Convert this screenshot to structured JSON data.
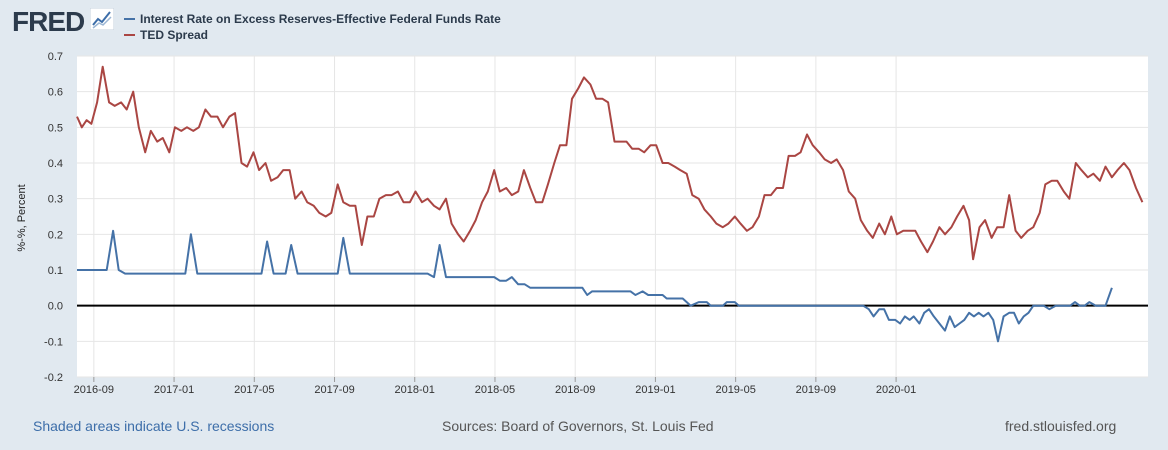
{
  "header": {
    "logo": "FRED",
    "logo_icon": "chart-line-icon"
  },
  "legend": [
    {
      "label": "Interest Rate on Excess Reserves-Effective Federal Funds Rate",
      "color": "#4572a7"
    },
    {
      "label": "TED Spread",
      "color": "#aa4643"
    }
  ],
  "footer": {
    "note": "Shaded areas indicate U.S. recessions",
    "sources": "Sources: Board of Governors, St. Louis Fed",
    "site": "fred.stlouisfed.org"
  },
  "chart_data": {
    "type": "line",
    "title": "",
    "xlabel": "",
    "ylabel": "%-%, Percent",
    "ylim": [
      -0.2,
      0.7
    ],
    "yticks": [
      "0.7",
      "0.6",
      "0.5",
      "0.4",
      "0.3",
      "0.2",
      "0.1",
      "0.0",
      "-0.1",
      "-0.2"
    ],
    "xlim": [
      0,
      13.35
    ],
    "xticks": [
      {
        "label": "2016-09",
        "x": 0.21
      },
      {
        "label": "2017-01",
        "x": 1.21
      },
      {
        "label": "2017-05",
        "x": 2.21
      },
      {
        "label": "2017-09",
        "x": 3.21
      },
      {
        "label": "2018-01",
        "x": 4.21
      },
      {
        "label": "2018-05",
        "x": 5.21
      },
      {
        "label": "2018-09",
        "x": 6.21
      },
      {
        "label": "2019-01",
        "x": 7.21
      },
      {
        "label": "2019-05",
        "x": 8.21
      },
      {
        "label": "2019-09",
        "x": 9.21
      },
      {
        "label": "2020-01",
        "x": 10.21
      }
    ],
    "zero_line": 0,
    "series": [
      {
        "name": "Interest Rate on Excess Reserves-Effective Federal Funds Rate",
        "color": "#4572a7",
        "points": [
          [
            0.0,
            0.1
          ],
          [
            0.37,
            0.1
          ],
          [
            0.45,
            0.21
          ],
          [
            0.52,
            0.1
          ],
          [
            0.6,
            0.09
          ],
          [
            1.35,
            0.09
          ],
          [
            1.42,
            0.2
          ],
          [
            1.5,
            0.09
          ],
          [
            2.3,
            0.09
          ],
          [
            2.37,
            0.18
          ],
          [
            2.45,
            0.09
          ],
          [
            2.6,
            0.09
          ],
          [
            2.67,
            0.17
          ],
          [
            2.75,
            0.09
          ],
          [
            3.25,
            0.09
          ],
          [
            3.32,
            0.19
          ],
          [
            3.4,
            0.09
          ],
          [
            4.2,
            0.09
          ],
          [
            4.37,
            0.09
          ],
          [
            4.45,
            0.08
          ],
          [
            4.52,
            0.17
          ],
          [
            4.6,
            0.08
          ],
          [
            5.2,
            0.08
          ],
          [
            5.27,
            0.07
          ],
          [
            5.35,
            0.07
          ],
          [
            5.42,
            0.08
          ],
          [
            5.5,
            0.06
          ],
          [
            5.58,
            0.06
          ],
          [
            5.65,
            0.05
          ],
          [
            6.3,
            0.05
          ],
          [
            6.36,
            0.03
          ],
          [
            6.42,
            0.04
          ],
          [
            6.9,
            0.04
          ],
          [
            6.96,
            0.03
          ],
          [
            7.05,
            0.04
          ],
          [
            7.12,
            0.03
          ],
          [
            7.3,
            0.03
          ],
          [
            7.35,
            0.02
          ],
          [
            7.55,
            0.02
          ],
          [
            7.65,
            0.0
          ],
          [
            7.75,
            0.01
          ],
          [
            7.85,
            0.01
          ],
          [
            7.9,
            0.0
          ],
          [
            8.05,
            0.0
          ],
          [
            8.1,
            0.01
          ],
          [
            8.2,
            0.01
          ],
          [
            8.25,
            0.0
          ],
          [
            9.8,
            0.0
          ],
          [
            9.87,
            -0.01
          ],
          [
            9.93,
            -0.03
          ],
          [
            10.0,
            -0.01
          ],
          [
            10.06,
            -0.01
          ],
          [
            10.12,
            -0.04
          ],
          [
            10.2,
            -0.04
          ],
          [
            10.26,
            -0.05
          ],
          [
            10.32,
            -0.03
          ],
          [
            10.38,
            -0.04
          ],
          [
            10.43,
            -0.03
          ],
          [
            10.5,
            -0.05
          ],
          [
            10.56,
            -0.02
          ],
          [
            10.62,
            -0.01
          ],
          [
            10.68,
            -0.03
          ],
          [
            10.75,
            -0.05
          ],
          [
            10.82,
            -0.07
          ],
          [
            10.88,
            -0.03
          ],
          [
            10.94,
            -0.06
          ],
          [
            11.0,
            -0.05
          ],
          [
            11.06,
            -0.04
          ],
          [
            11.12,
            -0.02
          ],
          [
            11.18,
            -0.03
          ],
          [
            11.24,
            -0.02
          ],
          [
            11.3,
            -0.03
          ],
          [
            11.36,
            -0.02
          ],
          [
            11.42,
            -0.04
          ],
          [
            11.48,
            -0.1
          ],
          [
            11.55,
            -0.03
          ],
          [
            11.62,
            -0.02
          ],
          [
            11.68,
            -0.02
          ],
          [
            11.74,
            -0.05
          ],
          [
            11.8,
            -0.03
          ],
          [
            11.86,
            -0.02
          ],
          [
            11.92,
            0.0
          ],
          [
            11.98,
            0.0
          ],
          [
            12.05,
            0.0
          ],
          [
            12.12,
            -0.01
          ],
          [
            12.2,
            0.0
          ],
          [
            12.3,
            0.0
          ],
          [
            12.38,
            0.0
          ],
          [
            12.44,
            0.01
          ],
          [
            12.5,
            0.0
          ],
          [
            12.56,
            0.0
          ],
          [
            12.62,
            0.01
          ],
          [
            12.7,
            0.0
          ],
          [
            12.82,
            0.0
          ],
          [
            12.9,
            0.05
          ]
        ]
      },
      {
        "name": "TED Spread",
        "color": "#aa4643",
        "points": [
          [
            0.0,
            0.53
          ],
          [
            0.06,
            0.5
          ],
          [
            0.12,
            0.52
          ],
          [
            0.18,
            0.51
          ],
          [
            0.25,
            0.57
          ],
          [
            0.32,
            0.67
          ],
          [
            0.4,
            0.57
          ],
          [
            0.47,
            0.56
          ],
          [
            0.55,
            0.57
          ],
          [
            0.62,
            0.55
          ],
          [
            0.7,
            0.6
          ],
          [
            0.77,
            0.5
          ],
          [
            0.85,
            0.43
          ],
          [
            0.92,
            0.49
          ],
          [
            1.0,
            0.46
          ],
          [
            1.07,
            0.47
          ],
          [
            1.15,
            0.43
          ],
          [
            1.22,
            0.5
          ],
          [
            1.3,
            0.49
          ],
          [
            1.37,
            0.5
          ],
          [
            1.45,
            0.49
          ],
          [
            1.52,
            0.5
          ],
          [
            1.6,
            0.55
          ],
          [
            1.67,
            0.53
          ],
          [
            1.75,
            0.53
          ],
          [
            1.82,
            0.5
          ],
          [
            1.9,
            0.53
          ],
          [
            1.97,
            0.54
          ],
          [
            2.05,
            0.4
          ],
          [
            2.12,
            0.39
          ],
          [
            2.2,
            0.43
          ],
          [
            2.27,
            0.38
          ],
          [
            2.35,
            0.4
          ],
          [
            2.42,
            0.35
          ],
          [
            2.5,
            0.36
          ],
          [
            2.57,
            0.38
          ],
          [
            2.65,
            0.38
          ],
          [
            2.72,
            0.3
          ],
          [
            2.8,
            0.32
          ],
          [
            2.87,
            0.29
          ],
          [
            2.95,
            0.28
          ],
          [
            3.02,
            0.26
          ],
          [
            3.1,
            0.25
          ],
          [
            3.17,
            0.26
          ],
          [
            3.25,
            0.34
          ],
          [
            3.32,
            0.29
          ],
          [
            3.4,
            0.28
          ],
          [
            3.47,
            0.28
          ],
          [
            3.55,
            0.17
          ],
          [
            3.62,
            0.25
          ],
          [
            3.7,
            0.25
          ],
          [
            3.77,
            0.3
          ],
          [
            3.85,
            0.31
          ],
          [
            3.92,
            0.31
          ],
          [
            4.0,
            0.32
          ],
          [
            4.07,
            0.29
          ],
          [
            4.15,
            0.29
          ],
          [
            4.22,
            0.32
          ],
          [
            4.3,
            0.29
          ],
          [
            4.37,
            0.3
          ],
          [
            4.45,
            0.28
          ],
          [
            4.52,
            0.27
          ],
          [
            4.6,
            0.3
          ],
          [
            4.67,
            0.23
          ],
          [
            4.75,
            0.2
          ],
          [
            4.82,
            0.18
          ],
          [
            4.9,
            0.21
          ],
          [
            4.97,
            0.24
          ],
          [
            5.05,
            0.29
          ],
          [
            5.12,
            0.32
          ],
          [
            5.2,
            0.38
          ],
          [
            5.27,
            0.32
          ],
          [
            5.35,
            0.33
          ],
          [
            5.42,
            0.31
          ],
          [
            5.5,
            0.32
          ],
          [
            5.57,
            0.38
          ],
          [
            5.65,
            0.33
          ],
          [
            5.72,
            0.29
          ],
          [
            5.8,
            0.29
          ],
          [
            5.87,
            0.34
          ],
          [
            5.95,
            0.4
          ],
          [
            6.02,
            0.45
          ],
          [
            6.1,
            0.45
          ],
          [
            6.17,
            0.58
          ],
          [
            6.25,
            0.61
          ],
          [
            6.32,
            0.64
          ],
          [
            6.4,
            0.62
          ],
          [
            6.47,
            0.58
          ],
          [
            6.55,
            0.58
          ],
          [
            6.62,
            0.57
          ],
          [
            6.7,
            0.46
          ],
          [
            6.77,
            0.46
          ],
          [
            6.85,
            0.46
          ],
          [
            6.92,
            0.44
          ],
          [
            7.0,
            0.44
          ],
          [
            7.07,
            0.43
          ],
          [
            7.15,
            0.45
          ],
          [
            7.22,
            0.45
          ],
          [
            7.3,
            0.4
          ],
          [
            7.37,
            0.4
          ],
          [
            7.45,
            0.39
          ],
          [
            7.52,
            0.38
          ],
          [
            7.6,
            0.37
          ],
          [
            7.67,
            0.31
          ],
          [
            7.75,
            0.3
          ],
          [
            7.82,
            0.27
          ],
          [
            7.9,
            0.25
          ],
          [
            7.97,
            0.23
          ],
          [
            8.05,
            0.22
          ],
          [
            8.12,
            0.23
          ],
          [
            8.2,
            0.25
          ],
          [
            8.27,
            0.23
          ],
          [
            8.35,
            0.21
          ],
          [
            8.42,
            0.22
          ],
          [
            8.5,
            0.25
          ],
          [
            8.57,
            0.31
          ],
          [
            8.65,
            0.31
          ],
          [
            8.72,
            0.33
          ],
          [
            8.8,
            0.33
          ],
          [
            8.87,
            0.42
          ],
          [
            8.95,
            0.42
          ],
          [
            9.02,
            0.43
          ],
          [
            9.1,
            0.48
          ],
          [
            9.17,
            0.45
          ],
          [
            9.25,
            0.43
          ],
          [
            9.32,
            0.41
          ],
          [
            9.4,
            0.4
          ],
          [
            9.47,
            0.41
          ],
          [
            9.55,
            0.38
          ],
          [
            9.62,
            0.32
          ],
          [
            9.7,
            0.3
          ],
          [
            9.77,
            0.24
          ],
          [
            9.85,
            0.21
          ],
          [
            9.92,
            0.19
          ],
          [
            10.0,
            0.23
          ],
          [
            10.07,
            0.2
          ],
          [
            10.15,
            0.25
          ],
          [
            10.22,
            0.2
          ],
          [
            10.3,
            0.21
          ],
          [
            10.37,
            0.21
          ],
          [
            10.45,
            0.21
          ],
          [
            10.52,
            0.18
          ],
          [
            10.6,
            0.15
          ],
          [
            10.67,
            0.18
          ],
          [
            10.75,
            0.22
          ],
          [
            10.82,
            0.2
          ],
          [
            10.9,
            0.22
          ],
          [
            10.97,
            0.25
          ],
          [
            11.05,
            0.28
          ],
          [
            11.12,
            0.24
          ],
          [
            11.17,
            0.13
          ],
          [
            11.25,
            0.22
          ],
          [
            11.32,
            0.24
          ],
          [
            11.4,
            0.19
          ],
          [
            11.47,
            0.22
          ],
          [
            11.55,
            0.22
          ],
          [
            11.62,
            0.31
          ],
          [
            11.7,
            0.21
          ],
          [
            11.77,
            0.19
          ],
          [
            11.85,
            0.21
          ],
          [
            11.92,
            0.22
          ],
          [
            12.0,
            0.26
          ],
          [
            12.07,
            0.34
          ],
          [
            12.15,
            0.35
          ],
          [
            12.22,
            0.35
          ],
          [
            12.3,
            0.32
          ],
          [
            12.37,
            0.3
          ],
          [
            12.45,
            0.4
          ],
          [
            12.52,
            0.38
          ],
          [
            12.6,
            0.36
          ],
          [
            12.67,
            0.37
          ],
          [
            12.75,
            0.35
          ],
          [
            12.82,
            0.39
          ],
          [
            12.9,
            0.36
          ],
          [
            12.97,
            0.38
          ],
          [
            13.05,
            0.4
          ],
          [
            13.12,
            0.38
          ],
          [
            13.2,
            0.33
          ],
          [
            13.28,
            0.29
          ]
        ]
      }
    ]
  }
}
